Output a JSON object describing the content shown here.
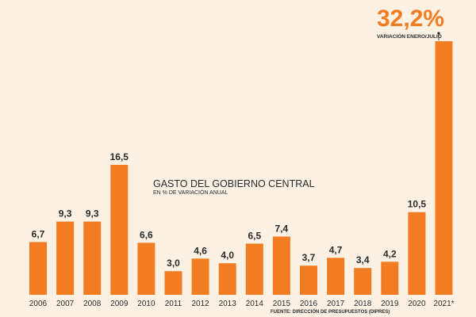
{
  "chart_data": {
    "type": "bar",
    "title": "GASTO DEL GOBIERNO CENTRAL",
    "subtitle": "EN % DE VARIACIÓN ANUAL",
    "source": "FUENTE: DIRECCIÓN DE PRESUPUESTOS (DIPRES)",
    "categories": [
      "2006",
      "2007",
      "2008",
      "2009",
      "2010",
      "2011",
      "2012",
      "2013",
      "2014",
      "2015",
      "2016",
      "2017",
      "2018",
      "2019",
      "2020",
      "2021*"
    ],
    "values": [
      6.7,
      9.3,
      9.3,
      16.5,
      6.6,
      3.0,
      4.6,
      4.0,
      6.5,
      7.4,
      3.7,
      4.7,
      3.4,
      4.2,
      10.5,
      32.2
    ],
    "value_labels": [
      "6,7",
      "9,3",
      "9,3",
      "16,5",
      "6,6",
      "3,0",
      "4,6",
      "4,0",
      "6,5",
      "7,4",
      "3,7",
      "4,7",
      "3,4",
      "4,2",
      "10,5",
      ""
    ],
    "highlight": {
      "value_label": "32,2%",
      "note": "VARIACIÓN ENERO/JULIO"
    },
    "ylim": [
      0,
      32.2
    ],
    "colors": {
      "bar": "#f27c22",
      "text": "#2b2b2b",
      "background": "#fdf1e3"
    },
    "grid": false
  }
}
